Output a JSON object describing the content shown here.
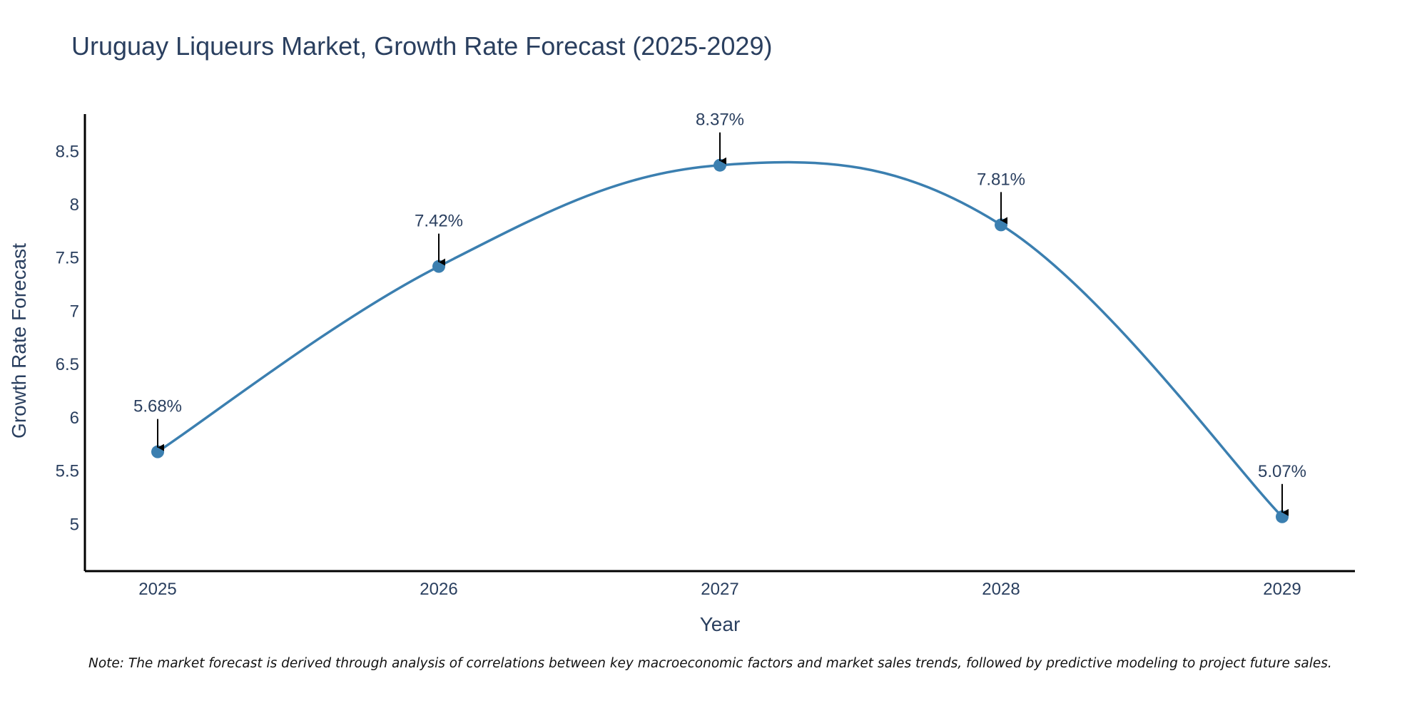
{
  "chart_data": {
    "type": "line",
    "title": "Uruguay Liqueurs Market, Growth Rate Forecast (2025-2029)",
    "xlabel": "Year",
    "ylabel": "Growth Rate Forecast",
    "x": [
      "2025",
      "2026",
      "2027",
      "2028",
      "2029"
    ],
    "series": [
      {
        "values": [
          5.68,
          7.42,
          8.37,
          7.81,
          5.07
        ],
        "data_labels": [
          "5.68%",
          "7.42%",
          "8.37%",
          "7.81%",
          "5.07%"
        ],
        "line": "spline",
        "markers": true,
        "color": "#3b7fb0"
      }
    ],
    "yticks": [
      5,
      5.5,
      6,
      6.5,
      7,
      7.5,
      8,
      8.5
    ],
    "ytick_labels": [
      "5",
      "5.5",
      "6",
      "6.5",
      "7",
      "7.5",
      "8",
      "8.5"
    ],
    "ylim": [
      4.56,
      8.85
    ],
    "grid": false,
    "legend": "none",
    "annotation_arrows": true
  },
  "note": "Note: The market forecast is derived through analysis of correlations between key macroeconomic factors and market sales trends, followed by predictive modeling to project future sales."
}
